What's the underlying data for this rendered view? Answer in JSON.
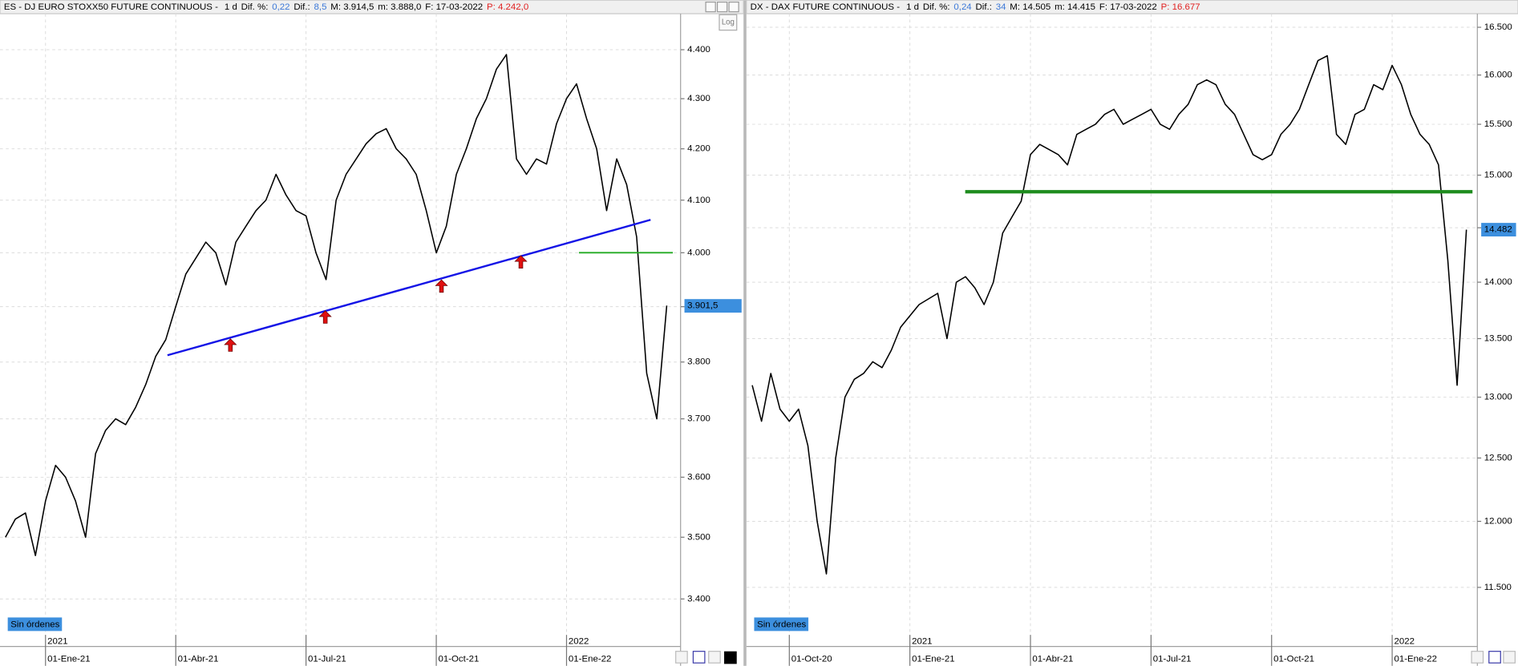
{
  "chart_data": [
    {
      "type": "line",
      "header": [
        "ES - DJ EURO STOXX50 FUTURE CONTINUOUS - ",
        "1 d",
        "Dif. %:",
        "0,22",
        "Dif.:",
        "8,5",
        "M: 3.914,5",
        "m: 3.888,0",
        "F: 17-03-2022",
        "P: 4.242,0"
      ],
      "header_colors": [
        "#000000",
        "#000000",
        "#000000",
        "#3b78d8",
        "#000000",
        "#3b78d8",
        "#000000",
        "#000000",
        "#000000",
        "#e02020"
      ],
      "scale_button": "Log",
      "orders_label": "Sin órdenes",
      "categories": [
        null,
        null,
        null,
        null,
        "01-Ene-21",
        null,
        null,
        null,
        null,
        null,
        null,
        null,
        null,
        null,
        null,
        null,
        null,
        "01-Abr-21",
        null,
        null,
        null,
        null,
        null,
        null,
        null,
        null,
        null,
        null,
        null,
        null,
        "01-Jul-21",
        null,
        null,
        null,
        null,
        null,
        null,
        null,
        null,
        null,
        null,
        null,
        null,
        "01-Oct-21",
        null,
        null,
        null,
        null,
        null,
        null,
        null,
        null,
        null,
        null,
        null,
        null,
        "01-Ene-22",
        null,
        null,
        null,
        null,
        null,
        null,
        null,
        null,
        null,
        null
      ],
      "year_labels": [
        "2021",
        "2022"
      ],
      "values": [
        3500,
        3530,
        3540,
        3470,
        3560,
        3620,
        3600,
        3560,
        3500,
        3640,
        3680,
        3700,
        3690,
        3720,
        3760,
        3810,
        3840,
        3900,
        3960,
        3990,
        4020,
        4000,
        3940,
        4020,
        4050,
        4080,
        4100,
        4150,
        4110,
        4080,
        4070,
        4000,
        3950,
        4100,
        4150,
        4180,
        4210,
        4230,
        4240,
        4200,
        4180,
        4150,
        4080,
        4000,
        4050,
        4150,
        4200,
        4260,
        4300,
        4360,
        4390,
        4180,
        4150,
        4180,
        4170,
        4250,
        4300,
        4330,
        4260,
        4200,
        4080,
        4180,
        4130,
        4030,
        3780,
        3700,
        3902
      ],
      "color": "#000000",
      "log_scale": true,
      "grid": true,
      "ylim": [
        3325,
        4475
      ],
      "yticks": [
        {
          "value": 4400,
          "label": "4.400"
        },
        {
          "value": 4300,
          "label": "4.300"
        },
        {
          "value": 4200,
          "label": "4.200"
        },
        {
          "value": 4100,
          "label": "4.100"
        },
        {
          "value": 4000,
          "label": "4.000"
        },
        {
          "value": 3900,
          "label": "3.900"
        },
        {
          "value": 3800,
          "label": "3.800"
        },
        {
          "value": 3700,
          "label": "3.700"
        },
        {
          "value": 3600,
          "label": "3.600"
        },
        {
          "value": 3500,
          "label": "3.500"
        },
        {
          "value": 3400,
          "label": "3.400"
        }
      ],
      "last_price": {
        "value": 3901.5,
        "label": "3.901,5"
      }
    },
    {
      "type": "line",
      "header": [
        "DX - DAX FUTURE CONTINUOUS - ",
        "1 d",
        "Dif. %:",
        "0,24",
        "Dif.:",
        "34",
        "M: 14.505",
        "m: 14.415",
        "F: 17-03-2022",
        "P: 16.677"
      ],
      "header_colors": [
        "#000000",
        "#000000",
        "#000000",
        "#3b78d8",
        "#000000",
        "#3b78d8",
        "#000000",
        "#000000",
        "#000000",
        "#e02020"
      ],
      "orders_label": "Sin órdenes",
      "categories": [
        null,
        null,
        null,
        null,
        "01-Oct-20",
        null,
        null,
        null,
        null,
        null,
        null,
        null,
        null,
        null,
        null,
        null,
        null,
        "01-Ene-21",
        null,
        null,
        null,
        null,
        null,
        null,
        null,
        null,
        null,
        null,
        null,
        null,
        "01-Abr-21",
        null,
        null,
        null,
        null,
        null,
        null,
        null,
        null,
        null,
        null,
        null,
        null,
        "01-Jul-21",
        null,
        null,
        null,
        null,
        null,
        null,
        null,
        null,
        null,
        null,
        null,
        null,
        "01-Oct-21",
        null,
        null,
        null,
        null,
        null,
        null,
        null,
        null,
        null,
        null,
        null,
        null,
        "01-Ene-22",
        null,
        null,
        null,
        null,
        null,
        null,
        null,
        null
      ],
      "year_labels": [
        "2021",
        "2022"
      ],
      "values": [
        13100,
        12800,
        13200,
        12900,
        12800,
        12900,
        12600,
        12000,
        11600,
        12500,
        13000,
        13150,
        13200,
        13300,
        13250,
        13400,
        13600,
        13700,
        13800,
        13850,
        13900,
        13500,
        14000,
        14050,
        13950,
        13800,
        14000,
        14450,
        14600,
        14750,
        15200,
        15300,
        15250,
        15200,
        15100,
        15400,
        15450,
        15500,
        15600,
        15650,
        15500,
        15550,
        15600,
        15650,
        15500,
        15450,
        15600,
        15700,
        15900,
        15950,
        15900,
        15700,
        15600,
        15400,
        15200,
        15150,
        15200,
        15400,
        15500,
        15650,
        15900,
        16150,
        16200,
        15400,
        15300,
        15600,
        15650,
        15900,
        15850,
        16100,
        15900,
        15600,
        15400,
        15300,
        15100,
        14200,
        13100,
        14482
      ],
      "color": "#000000",
      "log_scale": true,
      "grid": true,
      "ylim": [
        11070,
        16645
      ],
      "yticks": [
        {
          "value": 16500,
          "label": "16.500"
        },
        {
          "value": 16000,
          "label": "16.000"
        },
        {
          "value": 15500,
          "label": "15.500"
        },
        {
          "value": 15000,
          "label": "15.000"
        },
        {
          "value": 14500,
          "label": "14.500"
        },
        {
          "value": 14000,
          "label": "14.000"
        },
        {
          "value": 13500,
          "label": "13.500"
        },
        {
          "value": 13000,
          "label": "13.000"
        },
        {
          "value": 12500,
          "label": "12.500"
        },
        {
          "value": 12000,
          "label": "12.000"
        },
        {
          "value": 11500,
          "label": "11.500"
        }
      ],
      "last_price": {
        "value": 14482,
        "label": "14.482"
      }
    }
  ]
}
